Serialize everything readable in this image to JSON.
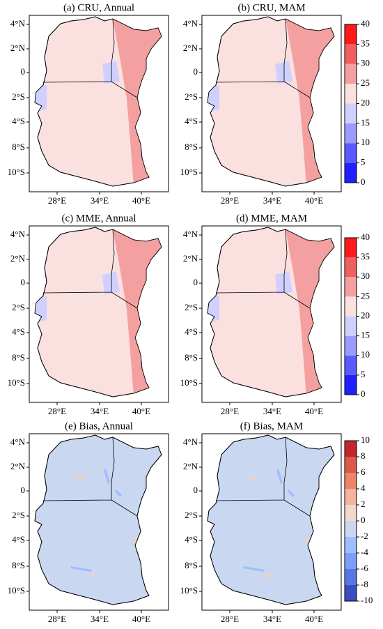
{
  "panels": [
    {
      "title": "(a) CRU, Annual"
    },
    {
      "title": "(b) CRU, MAM"
    },
    {
      "title": "(c) MME, Annual"
    },
    {
      "title": "(d) MME, MAM"
    },
    {
      "title": "(e) Bias, Annual"
    },
    {
      "title": "(f) Bias, MAM"
    }
  ],
  "lat_labels": [
    "4°N",
    "2°N",
    "0",
    "2°S",
    "4°S",
    "8°S",
    "10°S"
  ],
  "lon_labels": [
    "28°E",
    "34°E",
    "40°E"
  ],
  "colorbars": [
    {
      "ticks": [
        0,
        5,
        10,
        15,
        20,
        25,
        30,
        35,
        40
      ],
      "colors": [
        "#1f1fff",
        "#5a5aff",
        "#9a9aff",
        "#d0d0ff",
        "#fbe0e0",
        "#f4a0a0",
        "#f06060",
        "#ff1a1a"
      ]
    },
    {
      "ticks": [
        0,
        5,
        10,
        15,
        20,
        25,
        30,
        35,
        40
      ],
      "colors": [
        "#1f1fff",
        "#5a5aff",
        "#9a9aff",
        "#d0d0ff",
        "#fbe0e0",
        "#f4a0a0",
        "#f06060",
        "#ff1a1a"
      ]
    },
    {
      "ticks": [
        -10,
        -8,
        -6,
        -4,
        -2,
        0,
        2,
        4,
        6,
        8,
        10
      ],
      "colors": [
        "#3b4cc0",
        "#5977e3",
        "#7b9ff9",
        "#9ebeff",
        "#c9d7f0",
        "#f2d8cc",
        "#f4b49b",
        "#ee8468",
        "#dd5a4a",
        "#c0282c"
      ]
    }
  ]
}
